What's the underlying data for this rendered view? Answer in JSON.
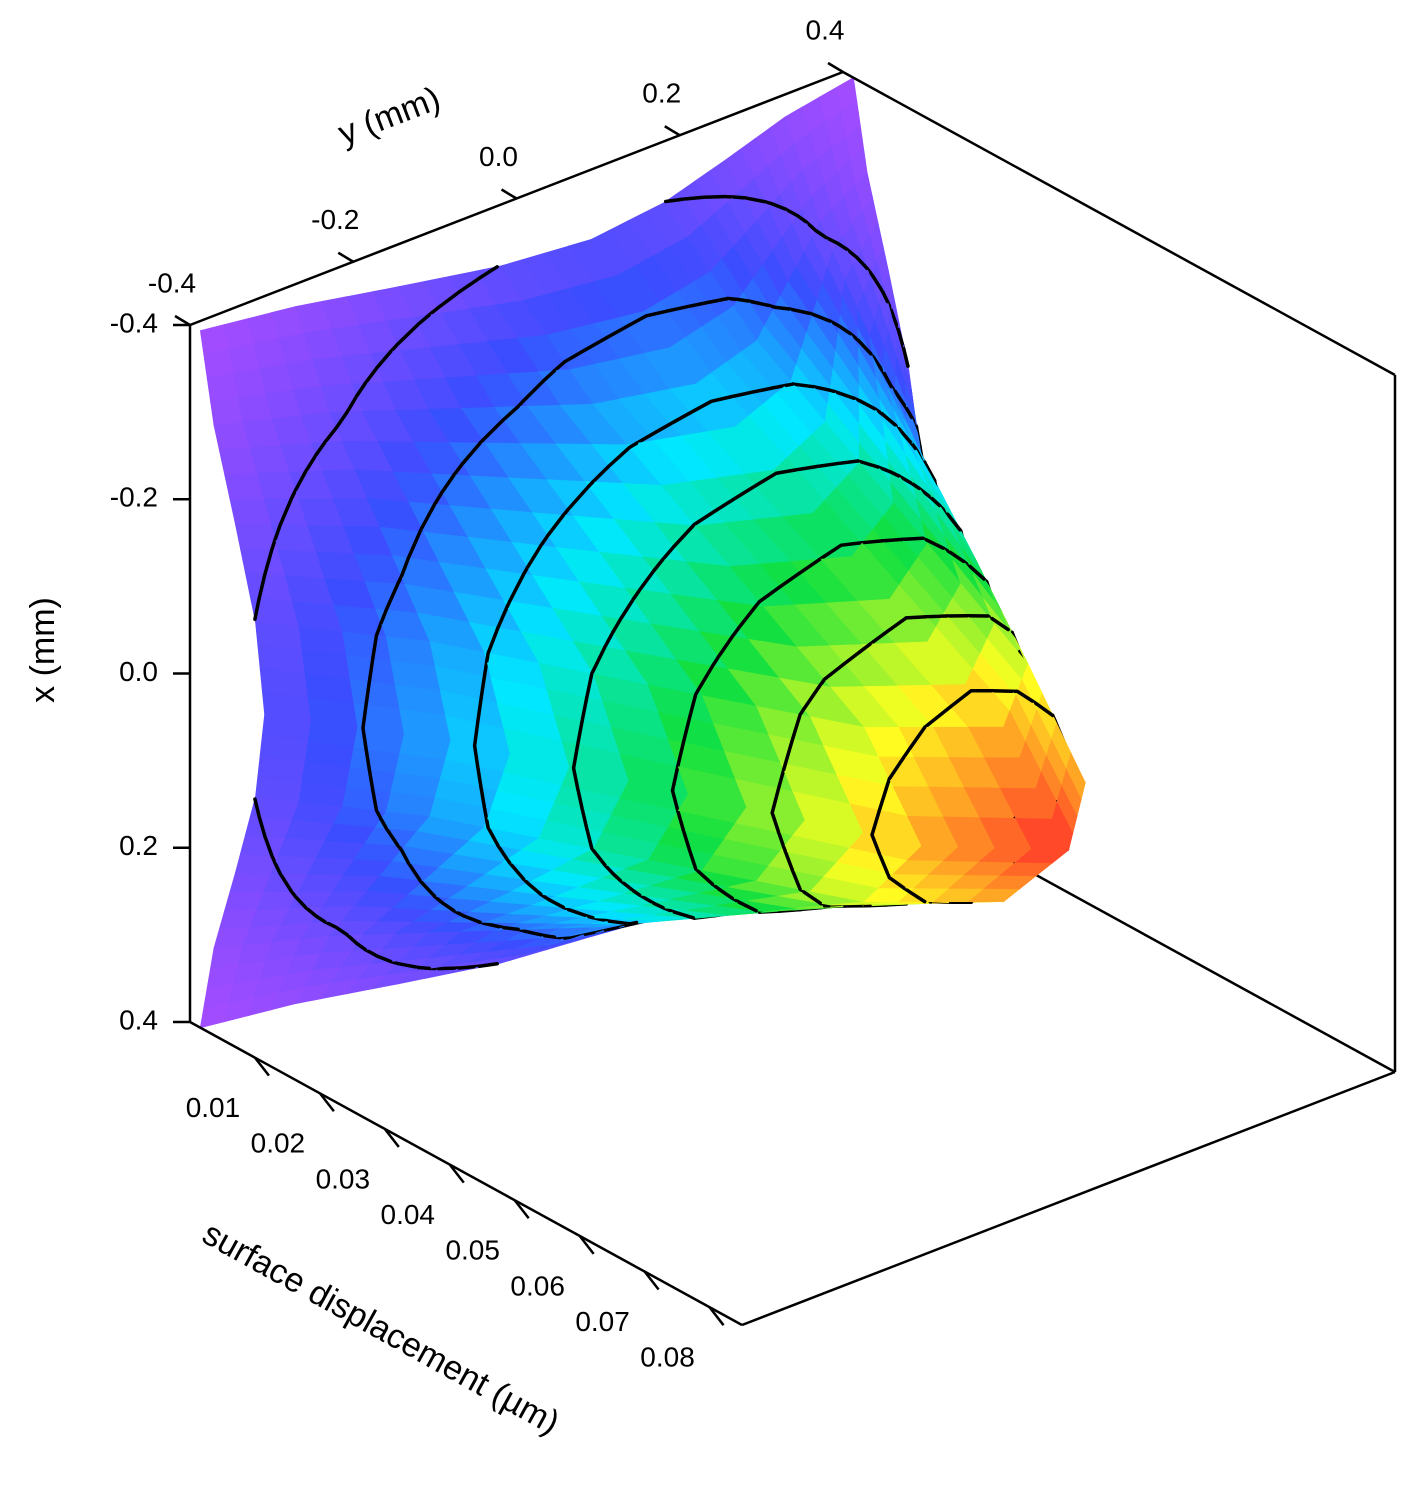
{
  "chart_data": {
    "type": "surface3d",
    "x_label": "x (mm)",
    "y_label": "y (mm)",
    "z_label": "surface displacement (µm)",
    "x": [
      -0.4,
      -0.3,
      -0.2,
      -0.1,
      0,
      0.1,
      0.2,
      0.3,
      0.4
    ],
    "y": [
      -0.4,
      -0.3,
      -0.2,
      -0.1,
      0,
      0.1,
      0.2,
      0.3,
      0.4
    ],
    "z": [
      [
        0.0016,
        0.0037,
        0.007,
        0.0101,
        0.0115,
        0.0101,
        0.007,
        0.0037,
        0.0016
      ],
      [
        0.0037,
        0.009,
        0.0167,
        0.0244,
        0.0276,
        0.0244,
        0.0167,
        0.009,
        0.0037
      ],
      [
        0.007,
        0.0167,
        0.0313,
        0.0455,
        0.0516,
        0.0455,
        0.0313,
        0.0167,
        0.007
      ],
      [
        0.0101,
        0.0244,
        0.0455,
        0.0662,
        0.075,
        0.0662,
        0.0455,
        0.0244,
        0.0101
      ],
      [
        0.0115,
        0.0276,
        0.0516,
        0.075,
        0.085,
        0.075,
        0.0516,
        0.0276,
        0.0115
      ],
      [
        0.0101,
        0.0244,
        0.0455,
        0.0662,
        0.075,
        0.0662,
        0.0455,
        0.0244,
        0.0101
      ],
      [
        0.007,
        0.0167,
        0.0313,
        0.0455,
        0.0516,
        0.0455,
        0.0313,
        0.0167,
        0.007
      ],
      [
        0.0037,
        0.009,
        0.0167,
        0.0244,
        0.0276,
        0.0244,
        0.0167,
        0.009,
        0.0037
      ],
      [
        0.0016,
        0.0037,
        0.007,
        0.0101,
        0.0115,
        0.0101,
        0.007,
        0.0037,
        0.0016
      ]
    ],
    "contours": [
      0.01,
      0.02,
      0.03,
      0.04,
      0.05,
      0.06,
      0.07,
      0.08
    ],
    "colormap": [
      "#b04cff",
      "#3a4dff",
      "#00e8ff",
      "#10e040",
      "#ffff20",
      "#ff2a2a"
    ],
    "xlim": [
      -0.4,
      0.4
    ],
    "xticks": [
      -0.4,
      -0.2,
      {
        "value": 0,
        "label": "0.0"
      },
      0.2,
      0.4
    ],
    "ylim": [
      -0.4,
      0.4
    ],
    "yticks": [
      -0.4,
      -0.2,
      {
        "value": 0,
        "label": "0.0"
      },
      0.2,
      0.4
    ],
    "zlim": [
      0,
      0.085
    ],
    "zticks": [
      0.01,
      0.02,
      0.03,
      0.04,
      0.05,
      0.06,
      0.07,
      0.08
    ]
  }
}
